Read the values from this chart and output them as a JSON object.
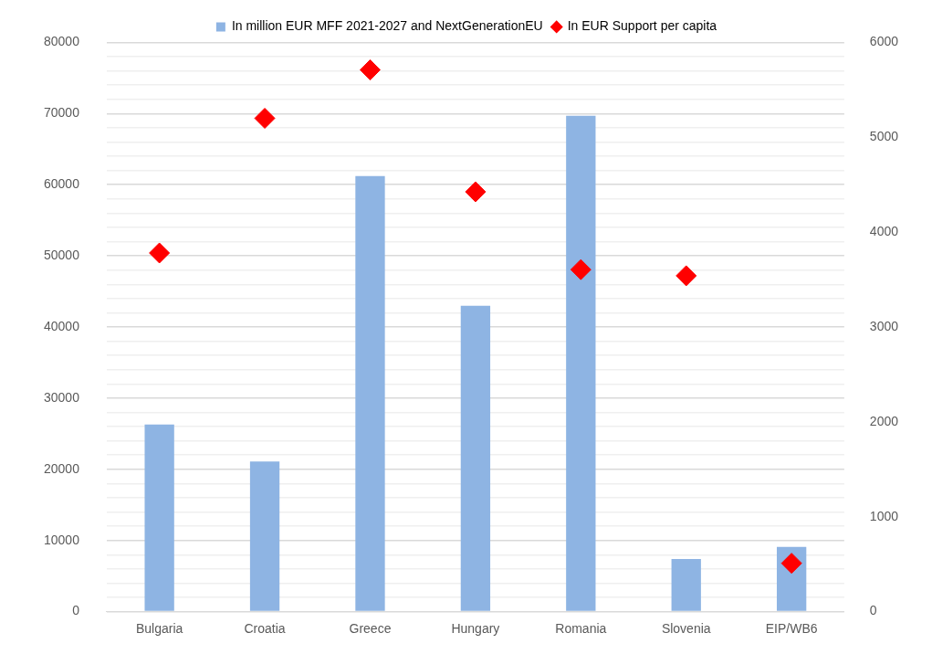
{
  "chart_data": {
    "type": "bar",
    "categories": [
      "Bulgaria",
      "Croatia",
      "Greece",
      "Hungary",
      "Romania",
      "Slovenia",
      "EIP/WB6"
    ],
    "series": [
      {
        "name": "In million EUR MFF 2021-2027 and NextGenerationEU",
        "color": "#8eb4e3",
        "values": [
          26300,
          21100,
          61200,
          43000,
          69700,
          7400,
          9100
        ]
      },
      {
        "name": "In EUR Support per capita",
        "type": "scatter",
        "axis": "y2",
        "color": "#ff0000",
        "marker": "diamond",
        "values": [
          3780,
          5200,
          5710,
          4425,
          3605,
          3540,
          510
        ]
      }
    ],
    "ylim": [
      0,
      80000
    ],
    "yticks": [
      0,
      {
        "value": 2000,
        "label": null
      },
      {
        "value": 4000,
        "label": null
      },
      {
        "value": 6000,
        "label": null
      },
      {
        "value": 8000,
        "label": null
      },
      10000,
      {
        "value": 12000,
        "label": null
      },
      {
        "value": 14000,
        "label": null
      },
      {
        "value": 16000,
        "label": null
      },
      {
        "value": 18000,
        "label": null
      },
      20000,
      {
        "value": 22000,
        "label": null
      },
      {
        "value": 24000,
        "label": null
      },
      {
        "value": 26000,
        "label": null
      },
      {
        "value": 28000,
        "label": null
      },
      30000,
      {
        "value": 32000,
        "label": null
      },
      {
        "value": 34000,
        "label": null
      },
      {
        "value": 36000,
        "label": null
      },
      {
        "value": 38000,
        "label": null
      },
      40000,
      {
        "value": 42000,
        "label": null
      },
      {
        "value": 44000,
        "label": null
      },
      {
        "value": 46000,
        "label": null
      },
      {
        "value": 48000,
        "label": null
      },
      50000,
      {
        "value": 52000,
        "label": null
      },
      {
        "value": 54000,
        "label": null
      },
      {
        "value": 56000,
        "label": null
      },
      {
        "value": 58000,
        "label": null
      },
      60000,
      {
        "value": 62000,
        "label": null
      },
      {
        "value": 64000,
        "label": null
      },
      {
        "value": 66000,
        "label": null
      },
      {
        "value": 68000,
        "label": null
      },
      70000,
      {
        "value": 72000,
        "label": null
      },
      {
        "value": 74000,
        "label": null
      },
      {
        "value": 76000,
        "label": null
      },
      {
        "value": 78000,
        "label": null
      },
      80000
    ],
    "y2lim": [
      0,
      6000
    ],
    "y2ticks": [
      0,
      1000,
      2000,
      3000,
      4000,
      5000,
      6000
    ],
    "grid": "y",
    "legend": "top"
  }
}
